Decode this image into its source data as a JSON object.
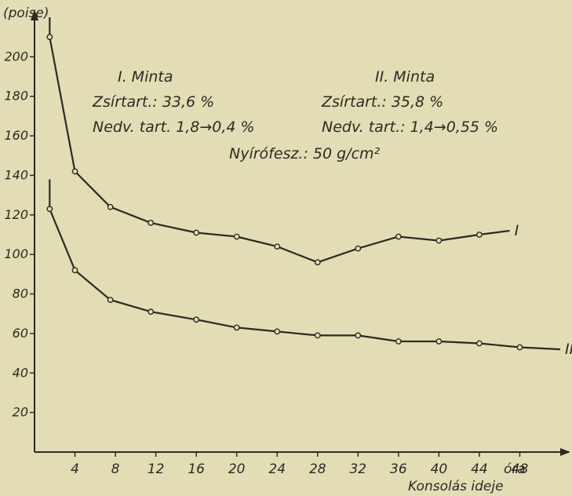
{
  "chart_data": {
    "type": "line",
    "ylabel": "(poise)",
    "xlabel": "Konsolás ideje",
    "x_unit": "óra",
    "xlim": [
      0,
      52
    ],
    "ylim": [
      0,
      220
    ],
    "x_ticks": [
      4,
      8,
      12,
      16,
      20,
      24,
      28,
      32,
      36,
      40,
      44,
      48
    ],
    "y_ticks": [
      20,
      40,
      60,
      80,
      100,
      120,
      140,
      160,
      180,
      200
    ],
    "grid": false,
    "series": [
      {
        "name": "I",
        "x": [
          1.5,
          4,
          7.5,
          11.5,
          16,
          20,
          24,
          28,
          32,
          36,
          40,
          44
        ],
        "y": [
          210,
          142,
          124,
          116,
          111,
          109,
          104,
          96,
          103,
          109,
          107,
          110
        ],
        "end": [
          47,
          112
        ]
      },
      {
        "name": "II",
        "x": [
          1.5,
          4,
          7.5,
          11.5,
          16,
          20,
          24,
          28,
          32,
          36,
          40,
          44,
          48
        ],
        "y": [
          123,
          92,
          77,
          71,
          67,
          63,
          61,
          59,
          59,
          56,
          56,
          55,
          53
        ],
        "end": [
          52,
          52
        ]
      }
    ],
    "annotations": {
      "sample1": {
        "title": "I. Minta",
        "fat": "Zsírtart.: 33,6 %",
        "moisture": "Nedv. tart. 1,8→0,4 %"
      },
      "sample2": {
        "title": "II. Minta",
        "fat": "Zsírtart.: 35,8 %",
        "moisture": "Nedv. tart.: 1,4→0,55 %"
      },
      "shear": "Nyírófesz.: 50 g/cm²"
    }
  }
}
